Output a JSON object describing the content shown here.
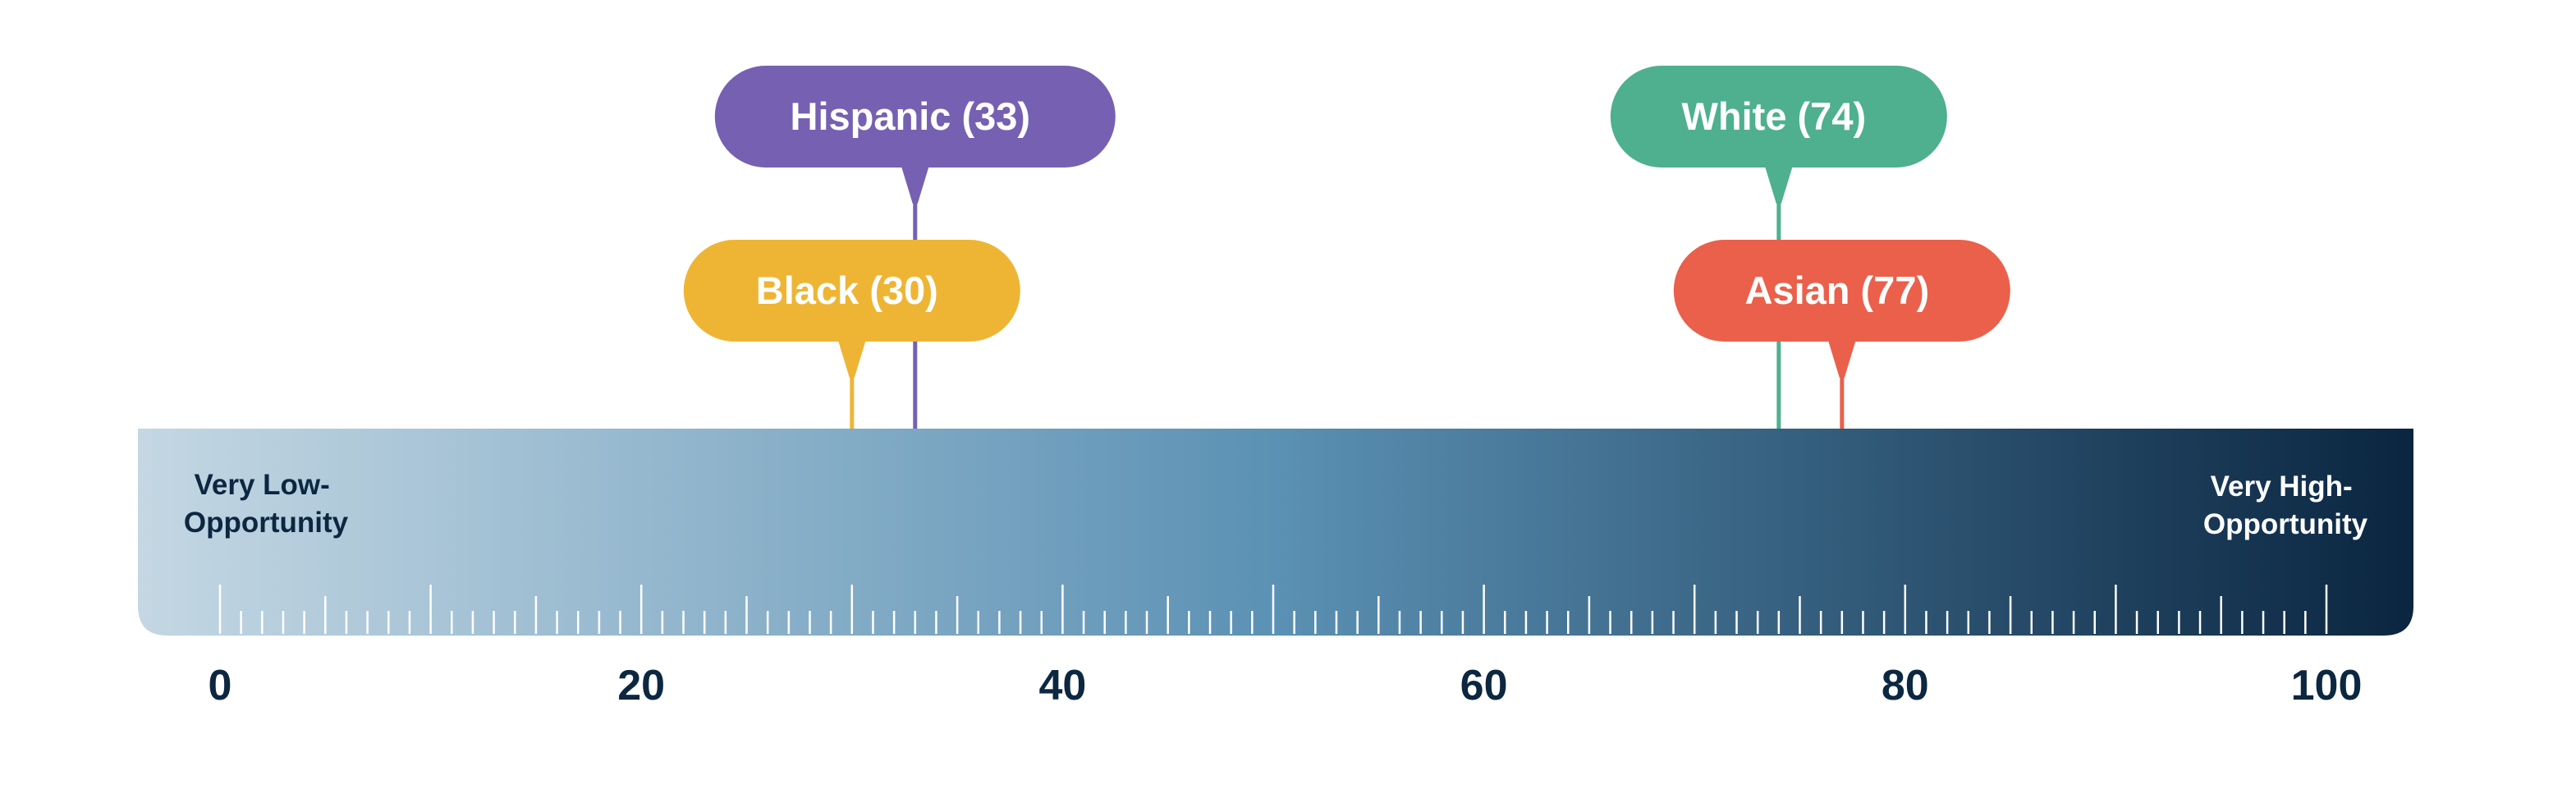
{
  "chart_data": {
    "type": "scatter",
    "xlim": [
      0,
      100
    ],
    "x_ticks": [
      0,
      20,
      40,
      60,
      80,
      100
    ],
    "minor_tick_step": 1,
    "left_end_label": [
      "Very Low-",
      "Opportunity"
    ],
    "right_end_label": [
      "Very High-",
      "Opportunity"
    ],
    "gradient_colors": [
      "#c4d7e3",
      "#5b91b4",
      "#0a2540"
    ],
    "points": [
      {
        "label": "Hispanic (33)",
        "value": 33,
        "color": "#7660b2",
        "row": "upper"
      },
      {
        "label": "Black (30)",
        "value": 30,
        "color": "#eeb534",
        "row": "lower"
      },
      {
        "label": "White (74)",
        "value": 74,
        "color": "#4eb08e",
        "row": "upper"
      },
      {
        "label": "Asian (77)",
        "value": 77,
        "color": "#ea604a",
        "row": "lower"
      }
    ]
  }
}
